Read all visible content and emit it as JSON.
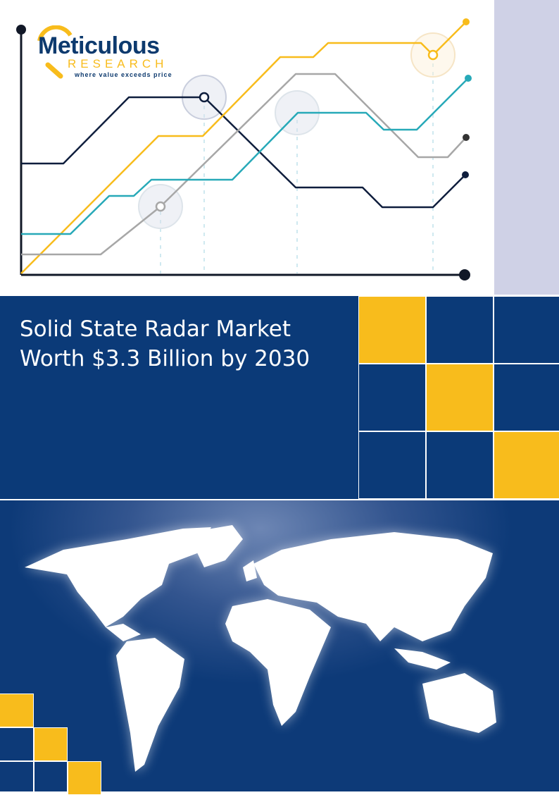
{
  "logo": {
    "name": "Meticulous",
    "sub": "RESEARCH",
    "tagline": "where value exceeds price"
  },
  "title": {
    "line1": "Solid State Radar Market",
    "line2": "Worth $3.3 Billion by 2030"
  },
  "colors": {
    "navy": "#0b3a78",
    "yellow": "#f8bc1c",
    "teal": "#27a9b8",
    "gray": "#a7a7a7",
    "sidebar": "#cfd1e6"
  }
}
